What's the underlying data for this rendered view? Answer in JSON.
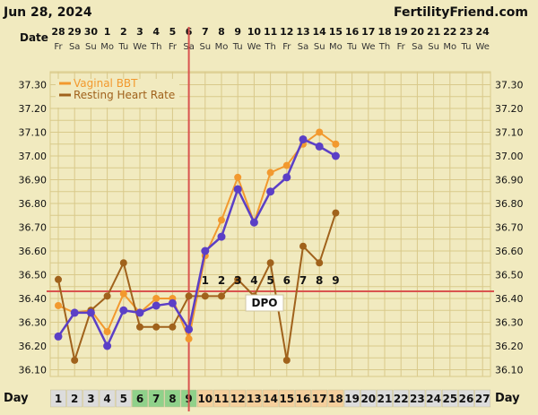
{
  "header": {
    "date_title": "Jun 28, 2024",
    "brand": "FertilityFriend.com",
    "date_label": "Date",
    "day_label": "Day",
    "dpo_label": "DPO"
  },
  "dates": [
    "28",
    "29",
    "30",
    "1",
    "2",
    "3",
    "4",
    "5",
    "6",
    "7",
    "8",
    "9",
    "10",
    "11",
    "12",
    "13",
    "14",
    "15",
    "16",
    "17",
    "18",
    "19",
    "20",
    "21",
    "22",
    "23",
    "24"
  ],
  "weekdays": [
    "Fr",
    "Sa",
    "Su",
    "Mo",
    "Tu",
    "We",
    "Th",
    "Fr",
    "Sa",
    "Su",
    "Mo",
    "Tu",
    "We",
    "Th",
    "Fr",
    "Sa",
    "Su",
    "Mo",
    "Tu",
    "We",
    "Th",
    "Fr",
    "Sa",
    "Su",
    "Mo",
    "Tu",
    "We"
  ],
  "days": [
    "1",
    "2",
    "3",
    "4",
    "5",
    "6",
    "7",
    "8",
    "9",
    "10",
    "11",
    "12",
    "13",
    "14",
    "15",
    "16",
    "17",
    "18",
    "19",
    "20",
    "21",
    "22",
    "23",
    "24",
    "25",
    "26",
    "27"
  ],
  "dpo_numbers": [
    "1",
    "2",
    "3",
    "4",
    "5",
    "6",
    "7",
    "8",
    "9"
  ],
  "colors": {
    "background": "#f1eabf",
    "grid": "#d9c98a",
    "vaginal_bbt": "#f2992e",
    "resting_heart_rate": "#a0621c",
    "temperature": "#5b3fc6",
    "coverline": "#d9534f",
    "day_green": "#8fd18a",
    "day_peach": "#f5cf9c",
    "day_gray": "#dcdcdc"
  },
  "chart_data": {
    "type": "line",
    "x": [
      1,
      2,
      3,
      4,
      5,
      6,
      7,
      8,
      9,
      10,
      11,
      12,
      13,
      14,
      15,
      16,
      17,
      18
    ],
    "ylim": [
      36.05,
      37.35
    ],
    "yticks": [
      "36.10",
      "36.20",
      "36.30",
      "36.40",
      "36.50",
      "36.60",
      "36.70",
      "36.80",
      "36.90",
      "37.00",
      "37.10",
      "37.20",
      "37.30"
    ],
    "legend_position": "top-left",
    "coverline": 36.43,
    "ovulation_day": 9,
    "series": [
      {
        "name": "Vaginal BBT",
        "values": [
          36.37,
          36.34,
          36.35,
          36.26,
          36.42,
          36.34,
          36.4,
          36.4,
          36.23,
          36.58,
          36.73,
          36.91,
          36.72,
          36.93,
          36.96,
          37.05,
          37.1,
          37.05
        ]
      },
      {
        "name": "Resting Heart Rate",
        "values": [
          36.48,
          36.14,
          36.35,
          36.41,
          36.55,
          36.28,
          36.28,
          36.28,
          36.41,
          36.41,
          36.41,
          36.48,
          36.41,
          36.55,
          36.14,
          36.62,
          36.55,
          36.76
        ]
      },
      {
        "name": "",
        "values": [
          36.24,
          36.34,
          36.34,
          36.2,
          36.35,
          36.34,
          36.37,
          36.38,
          36.27,
          36.6,
          36.66,
          36.86,
          36.72,
          36.85,
          36.91,
          37.07,
          37.04,
          37.0
        ]
      }
    ]
  }
}
